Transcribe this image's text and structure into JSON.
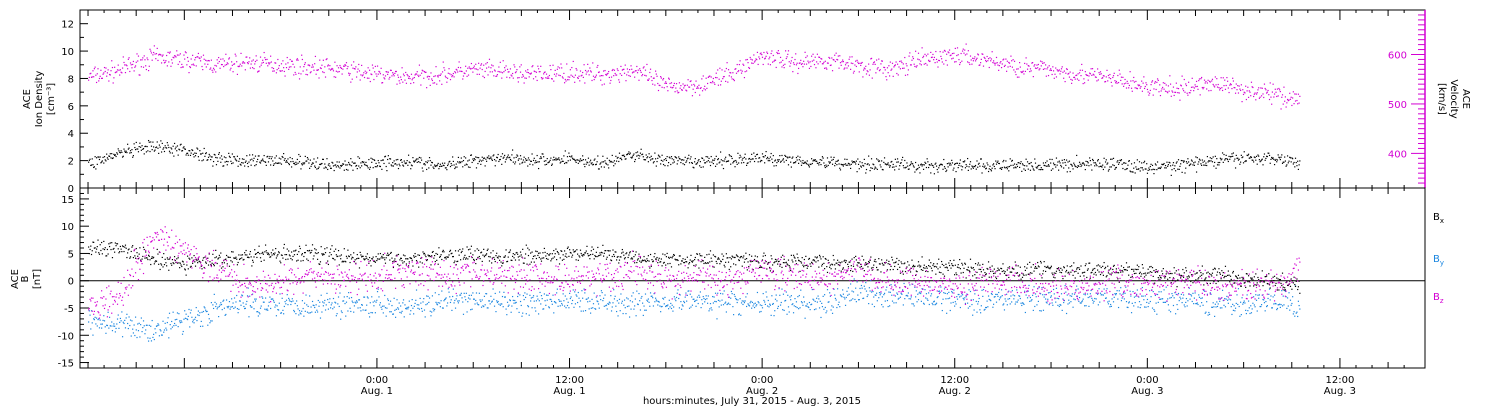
{
  "colors": {
    "axis": "#000000",
    "density": "#000000",
    "velocity": "#d300d3",
    "bx": "#000000",
    "by": "#1a86e0",
    "bz": "#d300d3"
  },
  "x_axis": {
    "title": "hours:minutes, July 31, 2015 - Aug.  3, 2015",
    "range_hours": [
      -18.5,
      65.3
    ],
    "ticks": [
      {
        "hour": 0,
        "time": "0:00",
        "date": "Aug. 1"
      },
      {
        "hour": 12,
        "time": "12:00",
        "date": "Aug. 1"
      },
      {
        "hour": 24,
        "time": "0:00",
        "date": "Aug. 2"
      },
      {
        "hour": 36,
        "time": "12:00",
        "date": "Aug. 2"
      },
      {
        "hour": 48,
        "time": "0:00",
        "date": "Aug. 3"
      },
      {
        "hour": 60,
        "time": "12:00",
        "date": "Aug. 3"
      }
    ]
  },
  "panels": {
    "plasma": {
      "left_label": [
        "ACE",
        "Ion Density",
        "[cm⁻³]"
      ],
      "right_label": [
        "ACE",
        "Velocity",
        "[km/s]"
      ],
      "left_axis": {
        "range": [
          0,
          13
        ],
        "ticks": [
          "0",
          "2",
          "4",
          "6",
          "8",
          "10",
          "12"
        ]
      },
      "right_axis": {
        "range": [
          330,
          690
        ],
        "ticks": [
          "400",
          "500",
          "600"
        ]
      }
    },
    "field": {
      "left_label": [
        "ACE",
        "B",
        "[nT]"
      ],
      "left_axis": {
        "range": [
          -16,
          17
        ],
        "ticks": [
          "-15",
          "-10",
          "-5",
          "0",
          "5",
          "10",
          "15"
        ]
      },
      "legend": [
        {
          "label": "B",
          "sub": "x",
          "color": "#000000"
        },
        {
          "label": "B",
          "sub": "y",
          "color": "#1a86e0"
        },
        {
          "label": "B",
          "sub": "z",
          "color": "#d300d3"
        }
      ]
    }
  },
  "chart_data": [
    {
      "type": "scatter",
      "series": [
        {
          "name": "Ion Density",
          "axis": "left",
          "x": [
            -18,
            -16,
            -14,
            -12,
            -10,
            -8,
            -6,
            -4,
            -2,
            0,
            2,
            4,
            6,
            8,
            10,
            12,
            14,
            16,
            18,
            20,
            22,
            24,
            26,
            28,
            30,
            32,
            34,
            36,
            38,
            40,
            42,
            44,
            46,
            48,
            50,
            52,
            54,
            56,
            57.5
          ],
          "y": [
            1.8,
            2.6,
            3.0,
            2.8,
            2.2,
            2.0,
            2.1,
            1.8,
            1.7,
            1.9,
            2.0,
            1.6,
            2.1,
            2.3,
            2.0,
            2.2,
            1.8,
            2.5,
            2.0,
            1.9,
            2.1,
            2.2,
            2.1,
            1.9,
            1.8,
            1.8,
            1.6,
            1.7,
            1.6,
            1.7,
            1.7,
            1.8,
            1.8,
            1.5,
            1.7,
            2.0,
            2.2,
            2.2,
            1.9
          ]
        },
        {
          "name": "Velocity",
          "axis": "right",
          "x": [
            -18,
            -16,
            -14,
            -12,
            -10,
            -8,
            -6,
            -4,
            -2,
            0,
            2,
            4,
            6,
            8,
            10,
            12,
            14,
            16,
            18,
            20,
            22,
            24,
            26,
            28,
            30,
            32,
            34,
            36,
            38,
            40,
            42,
            44,
            46,
            48,
            50,
            52,
            54,
            56,
            57.5
          ],
          "y": [
            555,
            570,
            595,
            590,
            580,
            585,
            580,
            575,
            570,
            560,
            555,
            560,
            570,
            565,
            560,
            565,
            560,
            570,
            535,
            540,
            560,
            600,
            585,
            590,
            580,
            570,
            590,
            600,
            590,
            575,
            570,
            560,
            550,
            535,
            530,
            545,
            530,
            520,
            510
          ]
        }
      ]
    },
    {
      "type": "scatter",
      "series": [
        {
          "name": "Bx",
          "x": [
            -18,
            -16,
            -14,
            -12,
            -10,
            -8,
            -6,
            -4,
            -2,
            0,
            2,
            4,
            6,
            8,
            10,
            12,
            14,
            16,
            18,
            20,
            22,
            24,
            26,
            28,
            30,
            32,
            34,
            36,
            38,
            40,
            42,
            44,
            46,
            48,
            50,
            52,
            54,
            56,
            57.5
          ],
          "y": [
            6,
            6,
            4,
            3,
            4,
            4.5,
            5,
            5,
            4.5,
            4,
            4,
            5,
            5,
            4.5,
            4.5,
            5,
            5,
            4.5,
            4,
            4,
            4,
            3.5,
            3.5,
            3.5,
            3,
            3,
            2.5,
            2.5,
            2,
            2,
            2,
            2,
            2,
            1.5,
            1,
            1,
            0.5,
            0,
            -0.5
          ]
        },
        {
          "name": "By",
          "x": [
            -18,
            -16,
            -14,
            -12,
            -10,
            -8,
            -6,
            -4,
            -2,
            0,
            2,
            4,
            6,
            8,
            10,
            12,
            14,
            16,
            18,
            20,
            22,
            24,
            26,
            28,
            30,
            32,
            34,
            36,
            38,
            40,
            42,
            44,
            46,
            48,
            50,
            52,
            54,
            56,
            57.5
          ],
          "y": [
            -7,
            -8,
            -9,
            -7,
            -5,
            -4,
            -4,
            -4.5,
            -4,
            -4,
            -4.5,
            -4,
            -3.5,
            -4,
            -4,
            -3.5,
            -3.5,
            -4,
            -3.5,
            -3.5,
            -4,
            -4,
            -4,
            -4,
            -2,
            -2.5,
            -3,
            -3,
            -3.5,
            -3,
            -3.5,
            -3,
            -3,
            -3.5,
            -3.5,
            -4,
            -4,
            -4,
            -4
          ]
        },
        {
          "name": "Bz",
          "x": [
            -18,
            -16,
            -14,
            -12,
            -10,
            -8,
            -6,
            -4,
            -2,
            0,
            2,
            4,
            6,
            8,
            10,
            12,
            14,
            16,
            18,
            20,
            22,
            24,
            26,
            28,
            30,
            32,
            34,
            36,
            38,
            40,
            42,
            44,
            46,
            48,
            50,
            52,
            54,
            56,
            57.5
          ],
          "y": [
            -5,
            -2,
            8,
            6,
            2,
            -1,
            0,
            1,
            0,
            1,
            2,
            1,
            2,
            1,
            1,
            0,
            1,
            2,
            0,
            1,
            0,
            2,
            1,
            0,
            2,
            0,
            0,
            -1,
            0,
            0,
            -1,
            -1,
            0,
            -1,
            0,
            -1,
            -1,
            -0.5,
            2
          ]
        }
      ]
    }
  ]
}
